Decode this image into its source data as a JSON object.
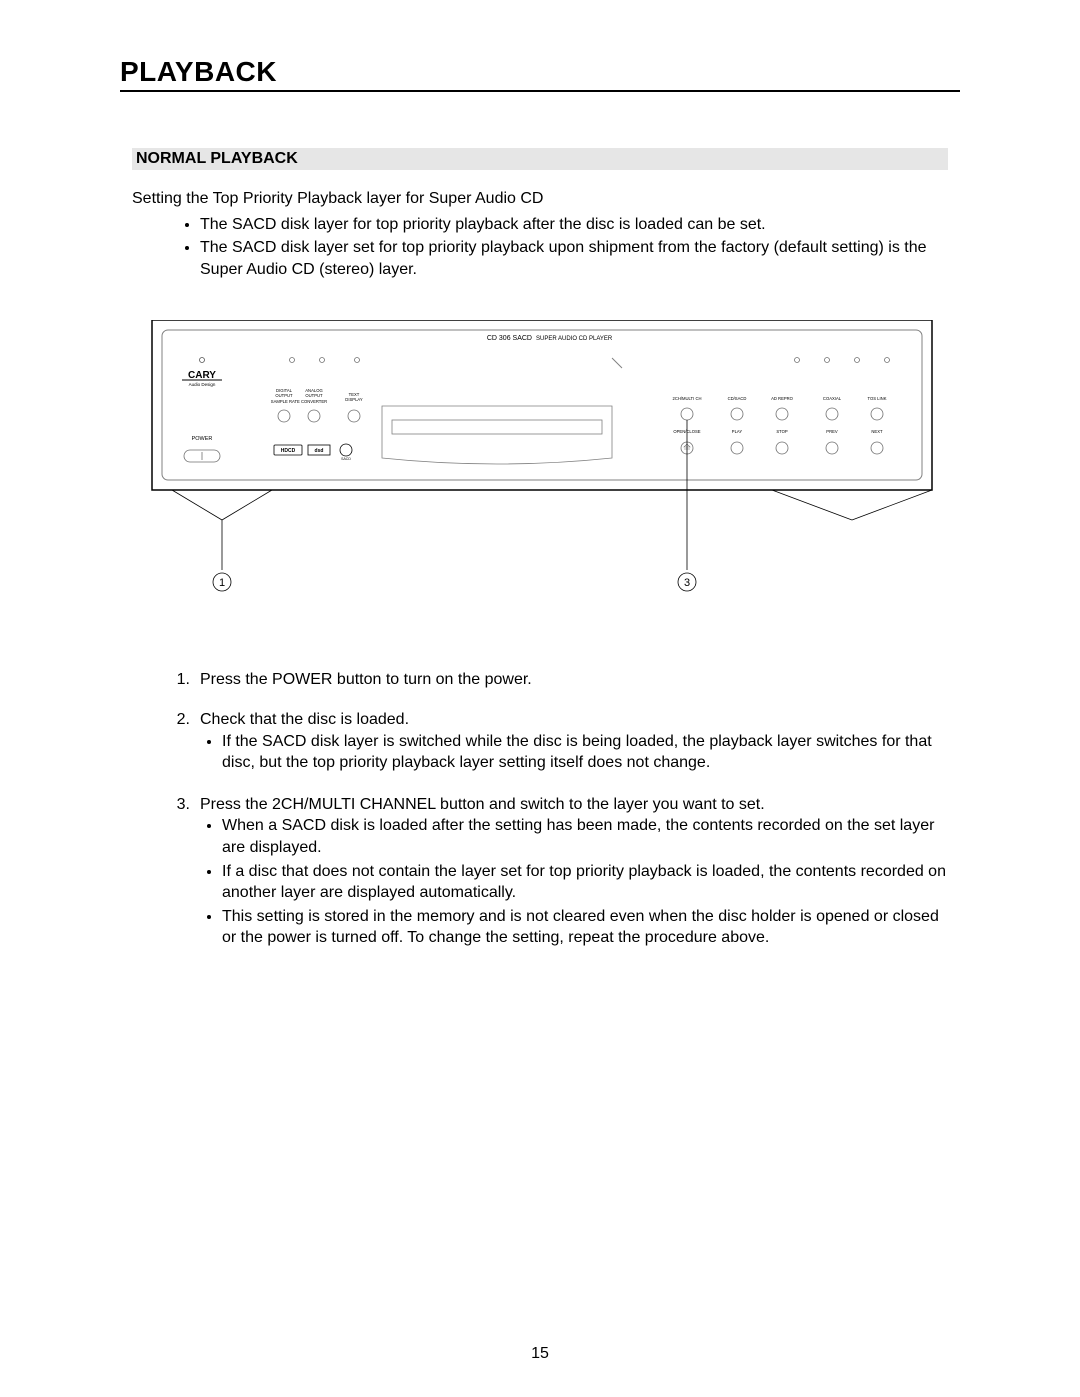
{
  "page_number": "15",
  "title": "PLAYBACK",
  "section_heading": "NORMAL PLAYBACK",
  "intro": "Setting the Top Priority Playback layer for Super Audio CD",
  "intro_bullets": [
    "The SACD disk layer for top priority playback after the disc is loaded can be set.",
    "The SACD disk layer set for top priority playback upon shipment from the factory (default setting) is the Super Audio CD (stereo) layer."
  ],
  "steps": [
    {
      "num": "1.",
      "text": "Press the POWER button to turn on the power.",
      "bullets": []
    },
    {
      "num": "2.",
      "text": "Check that the disc is loaded.",
      "bullets": [
        "If the SACD disk layer is switched while the disc is being loaded, the playback layer switches for that disc, but the top priority playback layer setting itself does not change."
      ]
    },
    {
      "num": "3.",
      "text": "Press the 2CH/MULTI CHANNEL button and switch to the layer you want to set.",
      "bullets": [
        "When a SACD disk is loaded after the setting has been made, the contents recorded on the set layer are displayed.",
        "If a disc that does not contain the layer set for top priority playback is loaded, the contents recorded on another layer are displayed automatically.",
        "This setting is stored in the memory and is not cleared even when the disc holder is opened or closed or the power is turned off. To change the setting, repeat the procedure above."
      ]
    }
  ],
  "diagram": {
    "device_title": "CD 306 SACD",
    "device_subtitle": "SUPER AUDIO CD PLAYER",
    "brand": "CARY",
    "brand_sub": "Audio Design",
    "power_label": "POWER",
    "left_labels": {
      "digital": "DIGITAL OUTPUT",
      "analog": "ANALOG OUTPUT",
      "sample_rate": "SAMPLE RATE CONVERTER",
      "text_display": "TEXT DISPLAY",
      "hdcd": "HDCD",
      "dsd": "dsd",
      "sacd_logo": "SACD"
    },
    "right_top_labels": [
      "2CH/MULTI CH",
      "CD/SACD",
      "AD REPRO",
      "COAXIAL",
      "TOS LINK"
    ],
    "right_bottom_labels": [
      "OPEN/CLOSE",
      "PLAY",
      "STOP",
      "PREV",
      "NEXT"
    ],
    "callouts": {
      "c1": "1",
      "c3": "3"
    },
    "colors": {
      "panel_border": "#000000",
      "inner_border": "#808080",
      "bg": "#ffffff",
      "text": "#000000",
      "light": "#707070"
    },
    "fontsizes": {
      "title": 7,
      "label_small": 4.2,
      "label_med": 5.5,
      "callout": 11
    }
  }
}
